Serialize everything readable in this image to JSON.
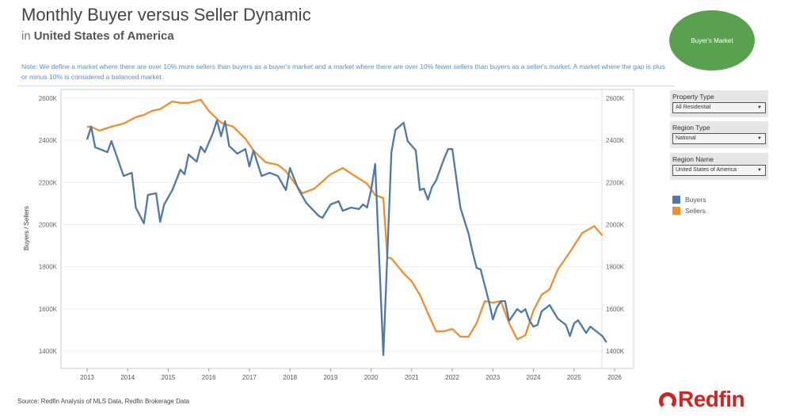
{
  "header": {
    "title": "Monthly Buyer versus Seller Dynamic",
    "in_label": "in",
    "region": "United States of America",
    "badge": "Buyer's Market",
    "badge_color": "#59a14f"
  },
  "note": "Note: We define a market where there are over 10% more sellers than buyers as a buyer's market and a market where there are over 10% fewer sellers than buyers as a seller's market. A market where the gap is plus or minus 10% is considered a balanced market.",
  "filters": [
    {
      "label": "Property Type",
      "value": "All Residential"
    },
    {
      "label": "Region Type",
      "value": "National"
    },
    {
      "label": "Region Name",
      "value": "United States of America"
    }
  ],
  "legend": [
    {
      "name": "Buyers",
      "color": "#4e79a7"
    },
    {
      "name": "Sellers",
      "color": "#f28e2b"
    }
  ],
  "footer": {
    "source": "Source: Redfin Analysis of MLS Data, Redfin Brokerage Data",
    "logo": "Redfin"
  },
  "chart_data": {
    "type": "line",
    "title": "Monthly Buyer versus Seller Dynamic",
    "xlabel": "",
    "ylabel": "Buyers / Sellers",
    "x_ticks": [
      "2013",
      "2014",
      "2015",
      "2016",
      "2017",
      "2018",
      "2019",
      "2020",
      "2021",
      "2022",
      "2023",
      "2024",
      "2025",
      "2026"
    ],
    "y_ticks": [
      "1400K",
      "1600K",
      "1800K",
      "2000K",
      "2200K",
      "2400K",
      "2600K"
    ],
    "xlim": [
      2012.6,
      2026.4
    ],
    "ylim": [
      1320,
      2680
    ],
    "y_axis_dual": true,
    "grid": true,
    "legend_position": "right",
    "series": [
      {
        "name": "Buyers",
        "color": "#4e79a7",
        "points": [
          [
            2013.0,
            2404
          ],
          [
            2013.1,
            2465
          ],
          [
            2013.2,
            2367
          ],
          [
            2013.4,
            2352
          ],
          [
            2013.5,
            2344
          ],
          [
            2013.6,
            2397
          ],
          [
            2013.9,
            2231
          ],
          [
            2014.1,
            2246
          ],
          [
            2014.2,
            2081
          ],
          [
            2014.4,
            2006
          ],
          [
            2014.5,
            2141
          ],
          [
            2014.7,
            2149
          ],
          [
            2014.8,
            2013
          ],
          [
            2014.9,
            2096
          ],
          [
            2015.1,
            2164
          ],
          [
            2015.3,
            2261
          ],
          [
            2015.4,
            2239
          ],
          [
            2015.5,
            2333
          ],
          [
            2015.7,
            2299
          ],
          [
            2015.8,
            2371
          ],
          [
            2015.9,
            2344
          ],
          [
            2016.1,
            2434
          ],
          [
            2016.2,
            2495
          ],
          [
            2016.3,
            2420
          ],
          [
            2016.4,
            2491
          ],
          [
            2016.5,
            2374
          ],
          [
            2016.7,
            2337
          ],
          [
            2016.9,
            2359
          ],
          [
            2017.0,
            2276
          ],
          [
            2017.1,
            2352
          ],
          [
            2017.3,
            2231
          ],
          [
            2017.5,
            2246
          ],
          [
            2017.7,
            2231
          ],
          [
            2017.9,
            2164
          ],
          [
            2018.0,
            2269
          ],
          [
            2018.2,
            2171
          ],
          [
            2018.4,
            2104
          ],
          [
            2018.7,
            2043
          ],
          [
            2018.8,
            2032
          ],
          [
            2019.0,
            2096
          ],
          [
            2019.2,
            2111
          ],
          [
            2019.3,
            2066
          ],
          [
            2019.5,
            2081
          ],
          [
            2019.7,
            2074
          ],
          [
            2019.8,
            2096
          ],
          [
            2019.9,
            2081
          ],
          [
            2020.0,
            2164
          ],
          [
            2020.1,
            2288
          ],
          [
            2020.3,
            1381
          ],
          [
            2020.5,
            2344
          ],
          [
            2020.6,
            2450
          ],
          [
            2020.8,
            2484
          ],
          [
            2020.9,
            2397
          ],
          [
            2021.1,
            2352
          ],
          [
            2021.2,
            2164
          ],
          [
            2021.3,
            2171
          ],
          [
            2021.4,
            2119
          ],
          [
            2021.5,
            2179
          ],
          [
            2021.6,
            2209
          ],
          [
            2021.8,
            2314
          ],
          [
            2021.9,
            2359
          ],
          [
            2022.0,
            2359
          ],
          [
            2022.2,
            2081
          ],
          [
            2022.4,
            1957
          ],
          [
            2022.5,
            1870
          ],
          [
            2022.6,
            1795
          ],
          [
            2022.7,
            1787
          ],
          [
            2022.9,
            1637
          ],
          [
            2023.0,
            1550
          ],
          [
            2023.1,
            1607
          ],
          [
            2023.2,
            1637
          ],
          [
            2023.3,
            1637
          ],
          [
            2023.4,
            1543
          ],
          [
            2023.6,
            1599
          ],
          [
            2023.7,
            1584
          ],
          [
            2023.8,
            1599
          ],
          [
            2023.9,
            1546
          ],
          [
            2024.0,
            1516
          ],
          [
            2024.1,
            1524
          ],
          [
            2024.2,
            1588
          ],
          [
            2024.4,
            1618
          ],
          [
            2024.6,
            1554
          ],
          [
            2024.8,
            1524
          ],
          [
            2024.9,
            1471
          ],
          [
            2025.0,
            1531
          ],
          [
            2025.1,
            1546
          ],
          [
            2025.3,
            1486
          ],
          [
            2025.4,
            1516
          ],
          [
            2025.6,
            1486
          ],
          [
            2025.7,
            1471
          ],
          [
            2025.8,
            1441
          ]
        ]
      },
      {
        "name": "Sellers",
        "color": "#f28e2b",
        "points": [
          [
            2013.0,
            2465
          ],
          [
            2013.1,
            2465
          ],
          [
            2013.3,
            2446
          ],
          [
            2013.6,
            2465
          ],
          [
            2013.9,
            2480
          ],
          [
            2014.2,
            2510
          ],
          [
            2014.4,
            2521
          ],
          [
            2014.6,
            2540
          ],
          [
            2014.8,
            2548
          ],
          [
            2015.1,
            2585
          ],
          [
            2015.3,
            2578
          ],
          [
            2015.5,
            2578
          ],
          [
            2015.8,
            2593
          ],
          [
            2016.0,
            2540
          ],
          [
            2016.3,
            2484
          ],
          [
            2016.6,
            2465
          ],
          [
            2016.9,
            2408
          ],
          [
            2017.1,
            2352
          ],
          [
            2017.4,
            2296
          ],
          [
            2017.7,
            2284
          ],
          [
            2017.9,
            2254
          ],
          [
            2018.1,
            2201
          ],
          [
            2018.3,
            2149
          ],
          [
            2018.6,
            2171
          ],
          [
            2019.0,
            2239
          ],
          [
            2019.3,
            2269
          ],
          [
            2019.6,
            2231
          ],
          [
            2019.9,
            2194
          ],
          [
            2020.1,
            2141
          ],
          [
            2020.3,
            2126
          ],
          [
            2020.4,
            1844
          ],
          [
            2020.5,
            1840
          ],
          [
            2020.8,
            1769
          ],
          [
            2021.0,
            1731
          ],
          [
            2021.2,
            1667
          ],
          [
            2021.4,
            1580
          ],
          [
            2021.6,
            1494
          ],
          [
            2021.8,
            1494
          ],
          [
            2022.0,
            1505
          ],
          [
            2022.2,
            1468
          ],
          [
            2022.4,
            1468
          ],
          [
            2022.6,
            1532
          ],
          [
            2022.8,
            1637
          ],
          [
            2023.0,
            1630
          ],
          [
            2023.2,
            1637
          ],
          [
            2023.4,
            1532
          ],
          [
            2023.6,
            1456
          ],
          [
            2023.8,
            1475
          ],
          [
            2024.0,
            1592
          ],
          [
            2024.2,
            1667
          ],
          [
            2024.4,
            1693
          ],
          [
            2024.6,
            1787
          ],
          [
            2024.9,
            1870
          ],
          [
            2025.2,
            1960
          ],
          [
            2025.5,
            1993
          ],
          [
            2025.7,
            1949
          ]
        ]
      }
    ]
  }
}
